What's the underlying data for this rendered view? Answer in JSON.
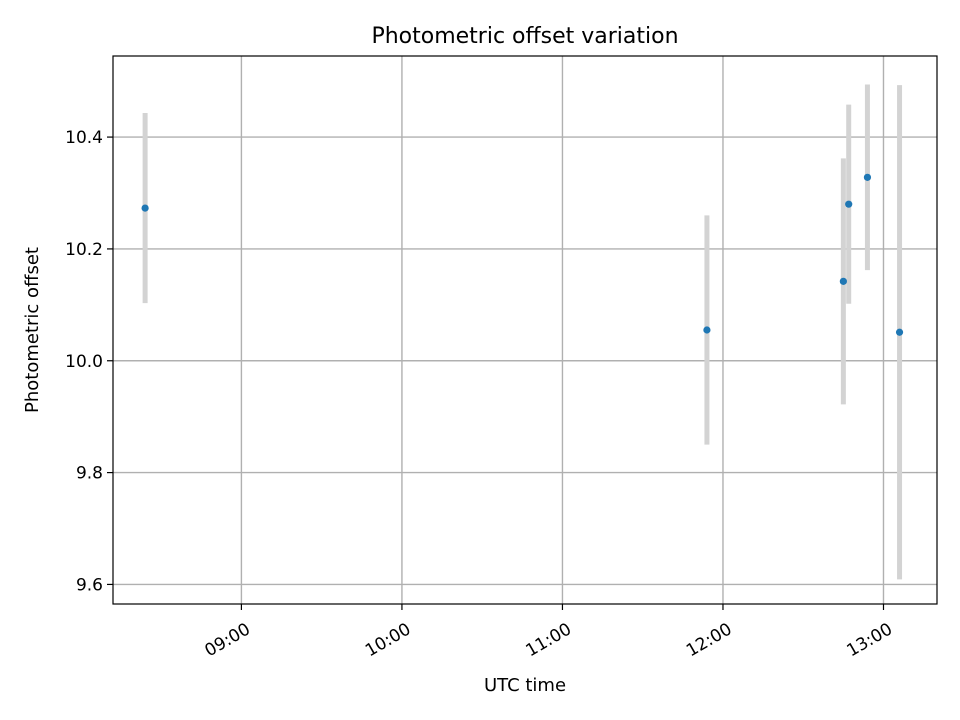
{
  "chart_data": {
    "type": "scatter",
    "title": "Photometric offset variation",
    "xlabel": "UTC time",
    "ylabel": "Photometric offset",
    "xlim": [
      "08:12",
      "13:20"
    ],
    "ylim": [
      9.565,
      10.545
    ],
    "x_ticks": [
      "09:00",
      "10:00",
      "11:00",
      "12:00",
      "13:00"
    ],
    "y_ticks": [
      9.6,
      9.8,
      10.0,
      10.2,
      10.4
    ],
    "y_tick_labels": [
      "9.6",
      "9.8",
      "10.0",
      "10.2",
      "10.4"
    ],
    "grid": true,
    "marker_color": "#1f77b4",
    "errorbar_color": "#d3d3d3",
    "points": [
      {
        "time": "08:24",
        "y": 10.273,
        "err": 0.17
      },
      {
        "time": "11:54",
        "y": 10.055,
        "err": 0.205
      },
      {
        "time": "12:45",
        "y": 10.142,
        "err": 0.22
      },
      {
        "time": "12:47",
        "y": 10.28,
        "err": 0.178
      },
      {
        "time": "12:54",
        "y": 10.328,
        "err": 0.166
      },
      {
        "time": "13:06",
        "y": 10.051,
        "err": 0.442
      }
    ]
  }
}
